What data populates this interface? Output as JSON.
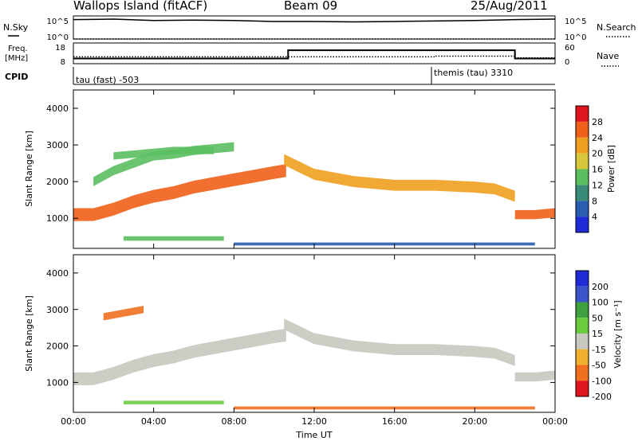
{
  "header": {
    "station": "Wallops Island (fitACF)",
    "beam": "Beam 09",
    "date": "25/Aug/2011"
  },
  "summary_panels": {
    "nsky_label": "N.Sky",
    "nsearch_label": "N.Search",
    "freq_label_top": "Freq.",
    "freq_label_unit": "[MHz]",
    "nave_label": "Nave",
    "cpid_label": "CPID",
    "noise_left_ticks": [
      "10^5",
      "10^0"
    ],
    "noise_right_ticks": [
      "10^5",
      "10^0"
    ],
    "freq_left_ticks": [
      "18",
      "8"
    ],
    "freq_right_ticks": [
      "60",
      "0"
    ],
    "cpid_entries": [
      {
        "text": "tau (fast) -503",
        "time_hour": 0
      },
      {
        "text": "themis (tau) 3310",
        "time_hour": 18
      }
    ]
  },
  "chart_data": [
    {
      "type": "line",
      "panel": "noise",
      "series": [
        {
          "name": "N.Sky",
          "style": "solid",
          "x_hours": [
            0,
            2,
            4,
            6,
            8,
            10,
            12,
            14,
            16,
            18,
            20,
            22,
            24
          ],
          "log10_values": [
            4.2,
            4.3,
            4.0,
            4.1,
            4.0,
            3.8,
            3.8,
            3.7,
            3.8,
            3.9,
            4.0,
            4.2,
            4.3
          ]
        },
        {
          "name": "N.Search",
          "style": "dotted",
          "x_hours": [
            0,
            24
          ],
          "log10_values": [
            0,
            0
          ]
        }
      ],
      "ylim": [
        0,
        5
      ]
    },
    {
      "type": "line",
      "panel": "frequency",
      "series": [
        {
          "name": "Freq.",
          "style": "solid",
          "x_hours": [
            0,
            10.7,
            10.7,
            22,
            22,
            24
          ],
          "values": [
            10.5,
            10.5,
            14.5,
            14.5,
            10.5,
            10.5
          ]
        },
        {
          "name": "Nave",
          "style": "dotted",
          "x_hours": [
            0,
            10.7,
            10.7,
            18,
            18,
            22,
            22,
            24
          ],
          "values": [
            20,
            20,
            20,
            20,
            22,
            22,
            17,
            17
          ]
        }
      ],
      "ylim": [
        8,
        18
      ],
      "y2lim": [
        0,
        60
      ]
    },
    {
      "type": "heatmap",
      "panel": "power",
      "xlabel": "",
      "ylabel": "Slant Range [km]",
      "xlim": [
        0,
        24
      ],
      "ylim": [
        180,
        4500
      ],
      "yticks": [
        1000,
        2000,
        3000,
        4000
      ],
      "colorbar": {
        "label": "Power [dB]",
        "ticks": [
          4,
          8,
          12,
          16,
          20,
          24,
          28
        ],
        "colors": [
          "#1f2bd6",
          "#2a5db0",
          "#3a8a78",
          "#5bbf60",
          "#d6c83a",
          "#f0a020",
          "#f06018",
          "#e0141c"
        ]
      },
      "bands": [
        {
          "x_hours": [
            0,
            1,
            2,
            3,
            4,
            5,
            6,
            7,
            8,
            9,
            10,
            10.6
          ],
          "range_km": [
            1100,
            1100,
            1250,
            1450,
            1600,
            1700,
            1850,
            1950,
            2050,
            2150,
            2250,
            2300
          ],
          "width_km": 350,
          "value_db": 25
        },
        {
          "x_hours": [
            1,
            2,
            3,
            4,
            5,
            6,
            7,
            8
          ],
          "range_km": [
            2000,
            2300,
            2500,
            2700,
            2750,
            2850,
            2900,
            2950
          ],
          "width_km": 250,
          "value_db": 14
        },
        {
          "x_hours": [
            2,
            3,
            4,
            5,
            6,
            7
          ],
          "range_km": [
            2700,
            2750,
            2800,
            2850,
            2850,
            2850
          ],
          "width_km": 200,
          "value_db": 12
        },
        {
          "x_hours": [
            10.5,
            12,
            14,
            16,
            18,
            20,
            21,
            22
          ],
          "range_km": [
            2600,
            2200,
            2000,
            1900,
            1900,
            1850,
            1800,
            1600
          ],
          "width_km": 300,
          "value_db": 22
        },
        {
          "x_hours": [
            22,
            23,
            24
          ],
          "range_km": [
            1100,
            1100,
            1150
          ],
          "width_km": 250,
          "value_db": 24
        },
        {
          "x_hours": [
            2.5,
            4,
            6,
            7.5
          ],
          "range_km": [
            450,
            450,
            450,
            450
          ],
          "width_km": 120,
          "value_db": 15
        },
        {
          "x_hours": [
            8,
            12,
            16,
            20,
            23
          ],
          "range_km": [
            300,
            300,
            300,
            300,
            300
          ],
          "width_km": 80,
          "value_db": 6
        }
      ]
    },
    {
      "type": "heatmap",
      "panel": "velocity",
      "xlabel": "Time UT",
      "ylabel": "Slant Range [km]",
      "xlim": [
        0,
        24
      ],
      "ylim": [
        180,
        4500
      ],
      "xticks": [
        "00:00",
        "04:00",
        "08:00",
        "12:00",
        "16:00",
        "20:00",
        "00:00"
      ],
      "yticks": [
        1000,
        2000,
        3000,
        4000
      ],
      "colorbar": {
        "label": "Velocity [m s⁻¹]",
        "ticks": [
          200,
          100,
          50,
          15,
          -15,
          -50,
          -100,
          -200
        ],
        "colors": [
          "#1f2bd6",
          "#3a55c8",
          "#40a040",
          "#6ccc40",
          "#c8c8c0",
          "#f0b030",
          "#f07020",
          "#e0141c"
        ]
      },
      "bands": [
        {
          "x_hours": [
            0,
            1,
            2,
            3,
            4,
            5,
            6,
            7,
            8,
            9,
            10,
            10.6
          ],
          "range_km": [
            1100,
            1100,
            1250,
            1450,
            1600,
            1700,
            1850,
            1950,
            2050,
            2150,
            2250,
            2300
          ],
          "width_km": 350,
          "value_ms": 0
        },
        {
          "x_hours": [
            10.5,
            12,
            14,
            16,
            18,
            20,
            21,
            22
          ],
          "range_km": [
            2600,
            2200,
            2000,
            1900,
            1900,
            1850,
            1800,
            1600
          ],
          "width_km": 300,
          "value_ms": 0
        },
        {
          "x_hours": [
            22,
            23,
            24
          ],
          "range_km": [
            1150,
            1150,
            1200
          ],
          "width_km": 250,
          "value_ms": 0
        },
        {
          "x_hours": [
            2.5,
            4,
            6,
            7.5
          ],
          "range_km": [
            450,
            450,
            450,
            450
          ],
          "width_km": 100,
          "value_ms": 40
        },
        {
          "x_hours": [
            8,
            12,
            16,
            20,
            23
          ],
          "range_km": [
            300,
            300,
            300,
            300,
            300
          ],
          "width_km": 80,
          "value_ms": -60
        },
        {
          "x_hours": [
            1.5,
            2.5,
            3.5
          ],
          "range_km": [
            2800,
            2900,
            3000
          ],
          "width_km": 200,
          "value_ms": -80
        }
      ]
    }
  ]
}
